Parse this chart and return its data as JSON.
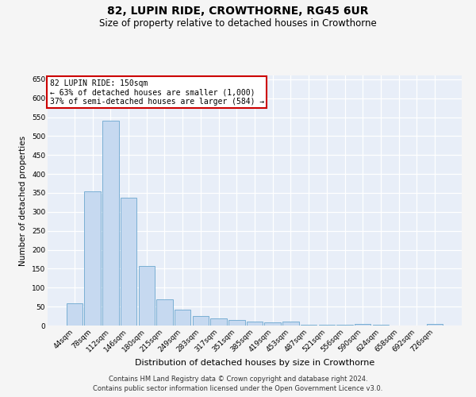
{
  "title": "82, LUPIN RIDE, CROWTHORNE, RG45 6UR",
  "subtitle": "Size of property relative to detached houses in Crowthorne",
  "xlabel": "Distribution of detached houses by size in Crowthorne",
  "ylabel": "Number of detached properties",
  "categories": [
    "44sqm",
    "78sqm",
    "112sqm",
    "146sqm",
    "180sqm",
    "215sqm",
    "249sqm",
    "283sqm",
    "317sqm",
    "351sqm",
    "385sqm",
    "419sqm",
    "453sqm",
    "487sqm",
    "521sqm",
    "556sqm",
    "590sqm",
    "624sqm",
    "658sqm",
    "692sqm",
    "726sqm"
  ],
  "values": [
    58,
    355,
    540,
    338,
    157,
    70,
    42,
    25,
    18,
    15,
    10,
    9,
    10,
    2,
    3,
    3,
    5,
    2,
    1,
    1,
    5
  ],
  "bar_color": "#c6d9f0",
  "bar_edge_color": "#7aafd4",
  "annotation_text": "82 LUPIN RIDE: 150sqm\n← 63% of detached houses are smaller (1,000)\n37% of semi-detached houses are larger (584) →",
  "annotation_box_color": "#ffffff",
  "annotation_box_edge_color": "#cc0000",
  "ylim": [
    0,
    660
  ],
  "yticks": [
    0,
    50,
    100,
    150,
    200,
    250,
    300,
    350,
    400,
    450,
    500,
    550,
    600,
    650
  ],
  "background_color": "#e8eef8",
  "grid_color": "#ffffff",
  "footer_line1": "Contains HM Land Registry data © Crown copyright and database right 2024.",
  "footer_line2": "Contains public sector information licensed under the Open Government Licence v3.0.",
  "title_fontsize": 10,
  "subtitle_fontsize": 8.5,
  "xlabel_fontsize": 8,
  "ylabel_fontsize": 7.5,
  "tick_fontsize": 6.5,
  "footer_fontsize": 6,
  "annot_fontsize": 7
}
